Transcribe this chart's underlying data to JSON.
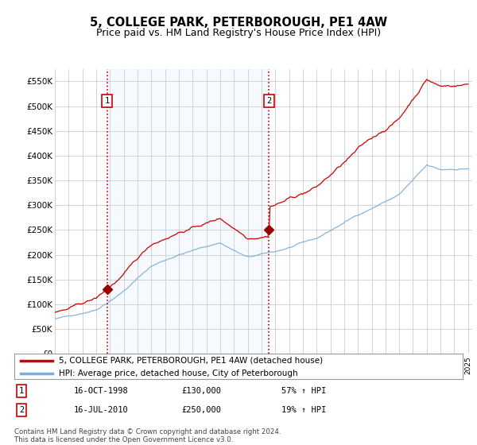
{
  "title": "5, COLLEGE PARK, PETERBOROUGH, PE1 4AW",
  "subtitle": "Price paid vs. HM Land Registry's House Price Index (HPI)",
  "title_fontsize": 10.5,
  "subtitle_fontsize": 9,
  "ylim": [
    0,
    575000
  ],
  "yticks": [
    0,
    50000,
    100000,
    150000,
    200000,
    250000,
    300000,
    350000,
    400000,
    450000,
    500000,
    550000
  ],
  "purchase1_year_f": 1998.79,
  "purchase1_price": 130000,
  "purchase1_label": "1",
  "purchase1_date": "16-OCT-1998",
  "purchase1_hpi": "57% ↑ HPI",
  "purchase2_year_f": 2010.54,
  "purchase2_price": 250000,
  "purchase2_label": "2",
  "purchase2_date": "16-JUL-2010",
  "purchase2_hpi": "19% ↑ HPI",
  "line1_color": "#cc0000",
  "line2_color": "#7aaddb",
  "vline_color": "#cc0000",
  "dot_color": "#990000",
  "shade_color": "#ddeeff",
  "legend_label1": "5, COLLEGE PARK, PETERBOROUGH, PE1 4AW (detached house)",
  "legend_label2": "HPI: Average price, detached house, City of Peterborough",
  "footnote": "Contains HM Land Registry data © Crown copyright and database right 2024.\nThis data is licensed under the Open Government Licence v3.0.",
  "background_color": "#ffffff",
  "grid_color": "#cccccc"
}
